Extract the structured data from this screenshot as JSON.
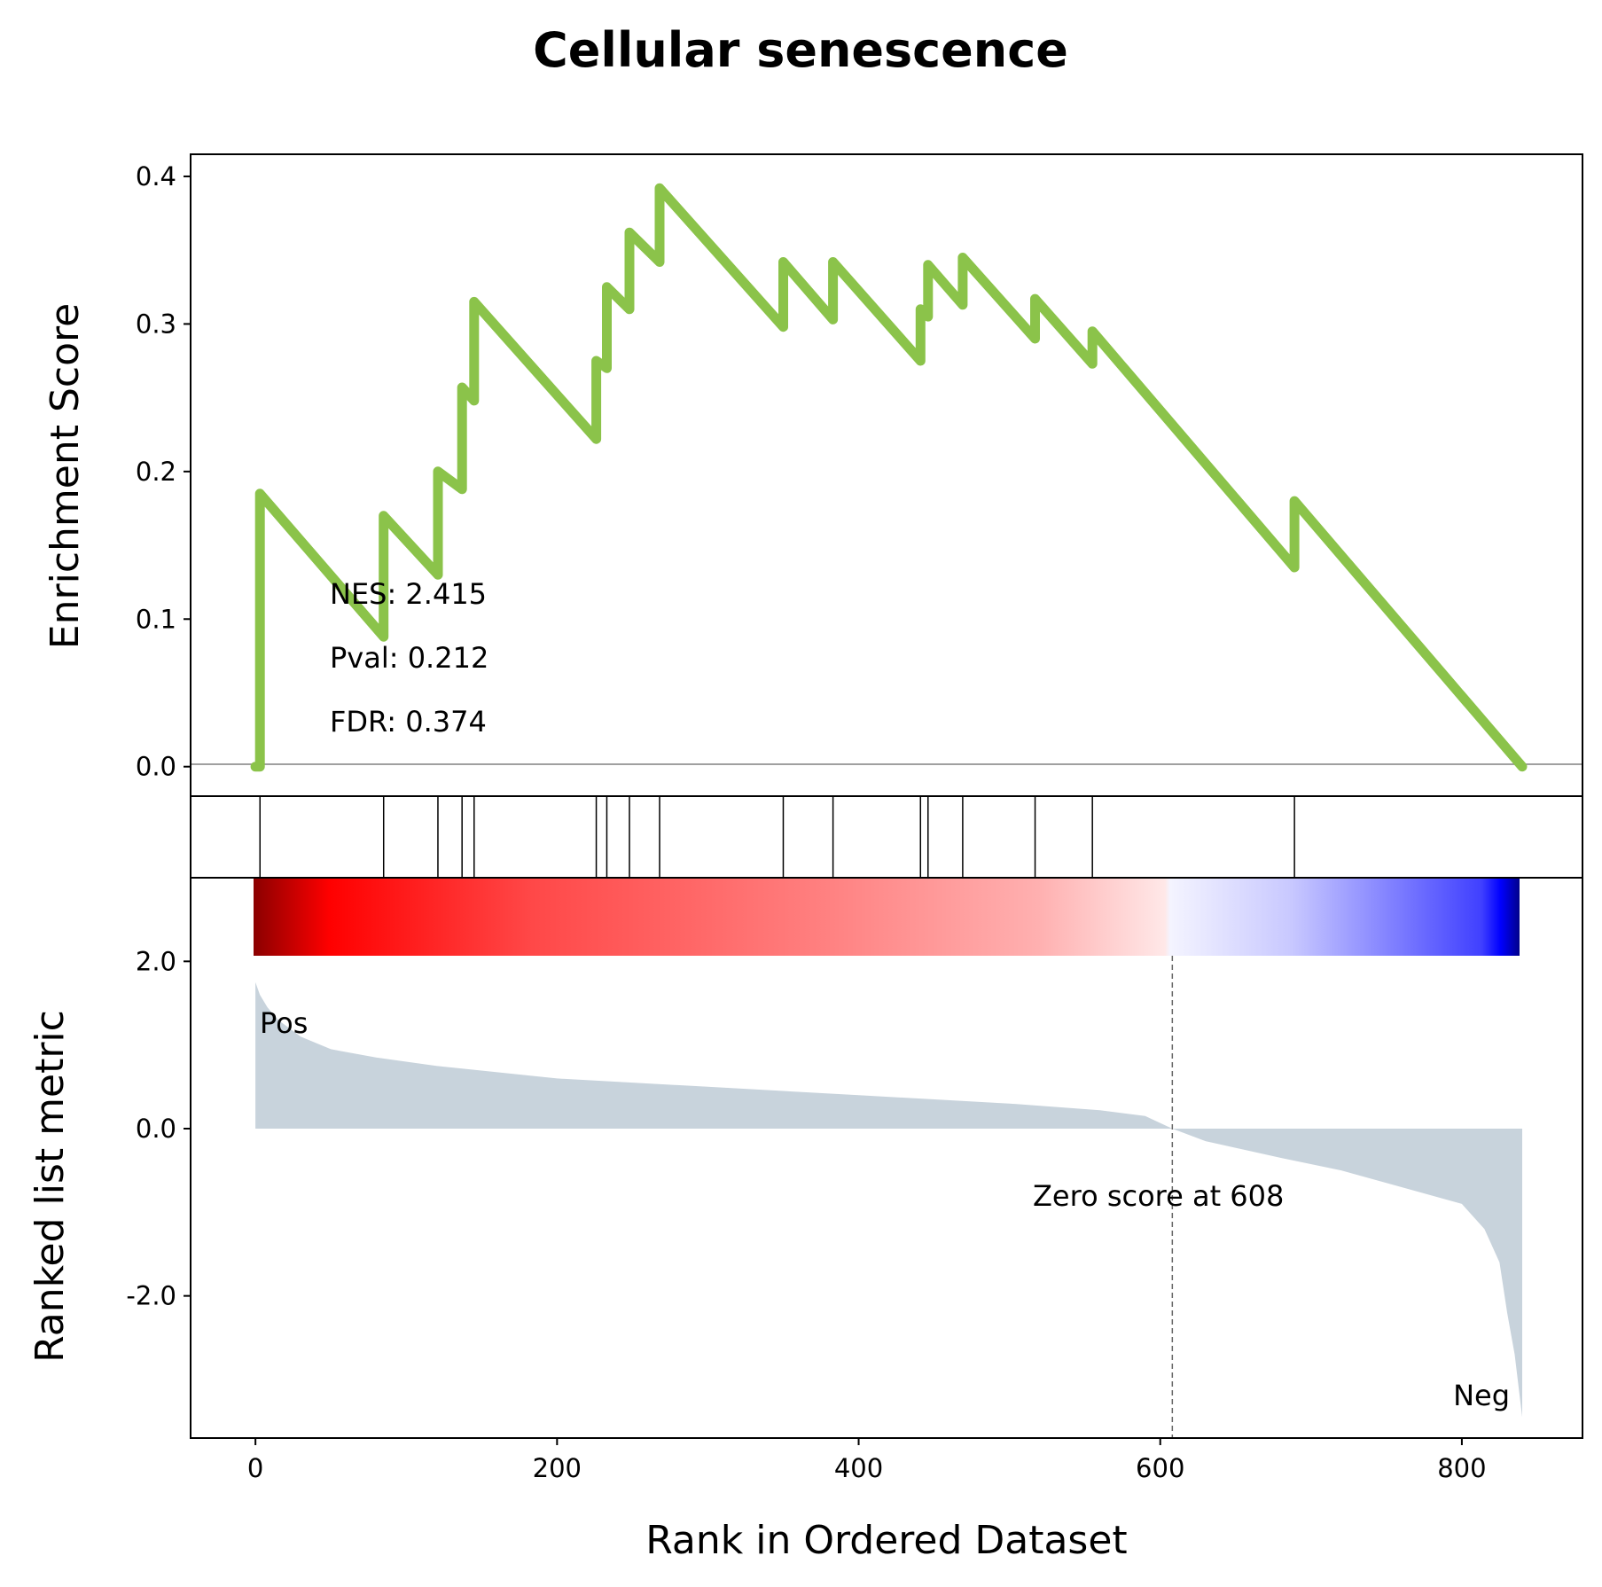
{
  "chart_data": {
    "type": "line",
    "title": "Cellular senescence",
    "xlabel": "Rank in Ordered Dataset",
    "xlim": [
      -43,
      880
    ],
    "x_ticks": [
      0,
      200,
      400,
      600,
      800
    ],
    "enrichment": {
      "ylabel": "Enrichment Score",
      "ylim": [
        -0.02,
        0.415
      ],
      "y_ticks": [
        0.0,
        0.1,
        0.2,
        0.3,
        0.4
      ],
      "color": "#8bc34a",
      "series": [
        {
          "x": 0,
          "y": 0.0
        },
        {
          "x": 3,
          "y": 0.0
        },
        {
          "x": 3,
          "y": 0.185
        },
        {
          "x": 85,
          "y": 0.088
        },
        {
          "x": 85,
          "y": 0.17
        },
        {
          "x": 121,
          "y": 0.13
        },
        {
          "x": 121,
          "y": 0.2
        },
        {
          "x": 137,
          "y": 0.188
        },
        {
          "x": 137,
          "y": 0.257
        },
        {
          "x": 145,
          "y": 0.248
        },
        {
          "x": 145,
          "y": 0.315
        },
        {
          "x": 226,
          "y": 0.222
        },
        {
          "x": 226,
          "y": 0.275
        },
        {
          "x": 233,
          "y": 0.27
        },
        {
          "x": 233,
          "y": 0.325
        },
        {
          "x": 248,
          "y": 0.31
        },
        {
          "x": 248,
          "y": 0.362
        },
        {
          "x": 268,
          "y": 0.342
        },
        {
          "x": 268,
          "y": 0.392
        },
        {
          "x": 350,
          "y": 0.298
        },
        {
          "x": 350,
          "y": 0.342
        },
        {
          "x": 383,
          "y": 0.303
        },
        {
          "x": 383,
          "y": 0.342
        },
        {
          "x": 441,
          "y": 0.275
        },
        {
          "x": 441,
          "y": 0.31
        },
        {
          "x": 446,
          "y": 0.305
        },
        {
          "x": 446,
          "y": 0.34
        },
        {
          "x": 469,
          "y": 0.313
        },
        {
          "x": 469,
          "y": 0.345
        },
        {
          "x": 517,
          "y": 0.29
        },
        {
          "x": 517,
          "y": 0.317
        },
        {
          "x": 555,
          "y": 0.273
        },
        {
          "x": 555,
          "y": 0.295
        },
        {
          "x": 689,
          "y": 0.135
        },
        {
          "x": 689,
          "y": 0.18
        },
        {
          "x": 840,
          "y": 0.0
        }
      ],
      "annotations": [
        "NES: 2.415",
        "Pval: 0.212",
        "FDR: 0.374"
      ]
    },
    "hits": {
      "positions": [
        3,
        85,
        121,
        137,
        145,
        226,
        233,
        248,
        268,
        350,
        383,
        441,
        446,
        469,
        517,
        555,
        689
      ]
    },
    "ranked_metric": {
      "ylabel": "Ranked list metric",
      "ylim": [
        -3.7,
        3.0
      ],
      "y_ticks": [
        2.0,
        0.0,
        -2.0
      ],
      "y_tick_labels": [
        "2.0",
        "0.0",
        "-2.0"
      ],
      "fill_color": "#c8d3dc",
      "profile": [
        {
          "x": 0,
          "y": 1.75
        },
        {
          "x": 3,
          "y": 1.6
        },
        {
          "x": 8,
          "y": 1.45
        },
        {
          "x": 15,
          "y": 1.3
        },
        {
          "x": 30,
          "y": 1.1
        },
        {
          "x": 50,
          "y": 0.95
        },
        {
          "x": 80,
          "y": 0.85
        },
        {
          "x": 120,
          "y": 0.75
        },
        {
          "x": 200,
          "y": 0.6
        },
        {
          "x": 300,
          "y": 0.5
        },
        {
          "x": 400,
          "y": 0.4
        },
        {
          "x": 500,
          "y": 0.3
        },
        {
          "x": 560,
          "y": 0.22
        },
        {
          "x": 590,
          "y": 0.15
        },
        {
          "x": 608,
          "y": 0.0
        },
        {
          "x": 630,
          "y": -0.15
        },
        {
          "x": 680,
          "y": -0.35
        },
        {
          "x": 720,
          "y": -0.5
        },
        {
          "x": 760,
          "y": -0.7
        },
        {
          "x": 800,
          "y": -0.9
        },
        {
          "x": 815,
          "y": -1.2
        },
        {
          "x": 825,
          "y": -1.6
        },
        {
          "x": 830,
          "y": -2.2
        },
        {
          "x": 835,
          "y": -2.7
        },
        {
          "x": 840,
          "y": -3.45
        }
      ],
      "zero_cross": 608,
      "zero_label": "Zero score at 608",
      "pos_label": "Pos",
      "pos_color": "#ff0000",
      "neg_label": "Neg",
      "neg_color": "#0000ff",
      "colorbar_stops": [
        "#8b0000",
        "#ff0000",
        "#ff4040",
        "#ff7070",
        "#ffa0a0",
        "#ffe0e0",
        "#ffffff",
        "#e0e0ff",
        "#b0b0ff",
        "#6060ff",
        "#0000ff",
        "#00008b"
      ]
    }
  }
}
